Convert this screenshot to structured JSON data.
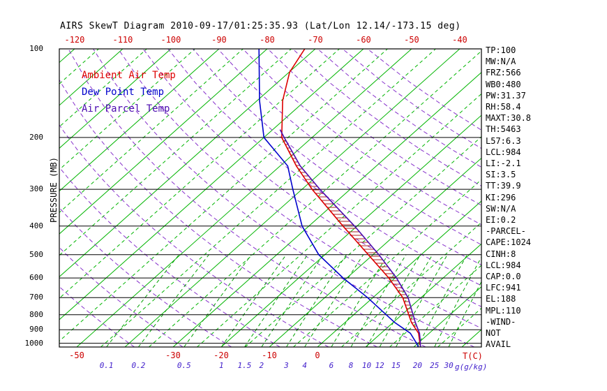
{
  "title": "AIRS SkewT Diagram 2010-09-17/01:25:35.93 (Lat/Lon 12.14/-173.15 deg)",
  "legend": {
    "ambient": {
      "label": "Ambient Air Temp",
      "color": "#dd0000"
    },
    "dewpoint": {
      "label": "Dew Point Temp",
      "color": "#0000cc"
    },
    "parcel": {
      "label": "Air Parcel Temp",
      "color": "#4b0bb0"
    }
  },
  "axes": {
    "pressure_label": "PRESSURE (MB)",
    "pressure_ticks": [
      100,
      200,
      300,
      400,
      500,
      600,
      700,
      800,
      900,
      1000
    ],
    "temp_top_ticks": [
      -120,
      -110,
      -100,
      -90,
      -80,
      -70,
      -60,
      -50,
      -40
    ],
    "temp_bottom_ticks": [
      -50,
      -30,
      -20,
      -10,
      0
    ],
    "temp_tick_color": "#cc0000",
    "mixing_label_color": "#4422cc",
    "temp_unit_label": "T(C)",
    "mixing_unit_label": "g(g/kg)"
  },
  "stats_panel": {
    "lines": [
      "TP:100",
      "MW:N/A",
      "FRZ:566",
      "WB0:480",
      "PW:31.37",
      "RH:58.4",
      "MAXT:30.8",
      "TH:5463",
      "L57:6.3",
      "LCL:984",
      "LI:-2.1",
      "SI:3.5",
      "TT:39.9",
      "KI:296",
      "SW:N/A",
      "EI:0.2",
      "-PARCEL-",
      "CAPE:1024",
      "CINH:8",
      "LCL:984",
      "CAP:0.0",
      "LFC:941",
      "EL:188",
      "MPL:110",
      "-WIND-",
      "NOT",
      "AVAIL"
    ]
  },
  "chart_data": {
    "type": "line",
    "title": "AIRS SkewT Diagram 2010-09-17/01:25:35.93 (Lat/Lon 12.14/-173.15 deg)",
    "xlabel": "Temperature (C), skewed axis",
    "ylabel": "Pressure (MB), logarithmic",
    "y_scale": "log",
    "pressure_range_mb": [
      100,
      1030
    ],
    "grid": {
      "isotherms_c": {
        "min": -150,
        "max": 35,
        "step": 5,
        "solid_every": 10
      },
      "dry_adiabats_c": {
        "min": -40,
        "max": 140,
        "step": 10
      },
      "mixing_ratio_g_kg": [
        0.1,
        0.2,
        0.5,
        1,
        1.5,
        2,
        3,
        4,
        6,
        8,
        10,
        12,
        15,
        20,
        25,
        30
      ]
    },
    "grid_colors": {
      "isotherm": "#00b400",
      "mixing": "#00a000",
      "adiabat": "#8833cc",
      "pressure_line": "#000000",
      "hatch": "#aa2222",
      "border": "#000000"
    },
    "series": [
      {
        "name": "Ambient Air Temp",
        "color": "#dd0000",
        "points": [
          [
            1030,
            21.4
          ],
          [
            1000,
            20.4
          ],
          [
            925,
            17.8
          ],
          [
            850,
            13.8
          ],
          [
            700,
            6.2
          ],
          [
            600,
            -1.3
          ],
          [
            500,
            -11.0
          ],
          [
            400,
            -22.9
          ],
          [
            300,
            -37.9
          ],
          [
            250,
            -46.6
          ],
          [
            200,
            -56.3
          ],
          [
            150,
            -64.7
          ],
          [
            120,
            -69.9
          ],
          [
            100,
            -72.2
          ]
        ]
      },
      {
        "name": "Dew Point Temp",
        "color": "#0000cc",
        "points": [
          [
            1030,
            21.0
          ],
          [
            1000,
            19.7
          ],
          [
            925,
            16.1
          ],
          [
            850,
            10.3
          ],
          [
            700,
            -1.1
          ],
          [
            600,
            -10.8
          ],
          [
            500,
            -21.3
          ],
          [
            400,
            -31.4
          ],
          [
            300,
            -41.9
          ],
          [
            250,
            -48.4
          ],
          [
            200,
            -60.0
          ],
          [
            150,
            -69.5
          ],
          [
            100,
            -81.7
          ]
        ]
      },
      {
        "name": "Air Parcel Temp",
        "color": "#4b0bb0",
        "points": [
          [
            1030,
            21.4
          ],
          [
            1000,
            20.5
          ],
          [
            984,
            20.0
          ],
          [
            925,
            18.0
          ],
          [
            850,
            14.6
          ],
          [
            700,
            7.3
          ],
          [
            600,
            0.3
          ],
          [
            500,
            -8.8
          ],
          [
            400,
            -20.5
          ],
          [
            300,
            -36.3
          ],
          [
            250,
            -45.8
          ],
          [
            200,
            -55.8
          ],
          [
            188,
            -58.5
          ]
        ]
      }
    ],
    "hatch": {
      "from_mb": 941,
      "to_mb": 200,
      "between": [
        "Air Parcel Temp",
        "Ambient Air Temp"
      ]
    }
  }
}
